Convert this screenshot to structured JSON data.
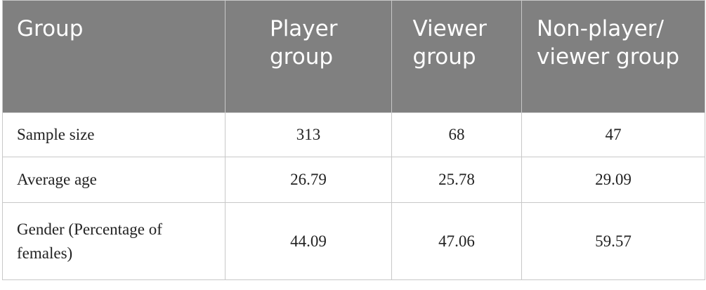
{
  "table": {
    "header": [
      "Group",
      "Player group",
      "Viewer group",
      "Non-player/ viewer group"
    ],
    "rows": [
      [
        "Sample size",
        "313",
        "68",
        "47"
      ],
      [
        "Average age",
        "26.79",
        "25.78",
        "29.09"
      ],
      [
        "Gender (Percentage of females)",
        "44.09",
        "47.06",
        "59.57"
      ]
    ]
  }
}
